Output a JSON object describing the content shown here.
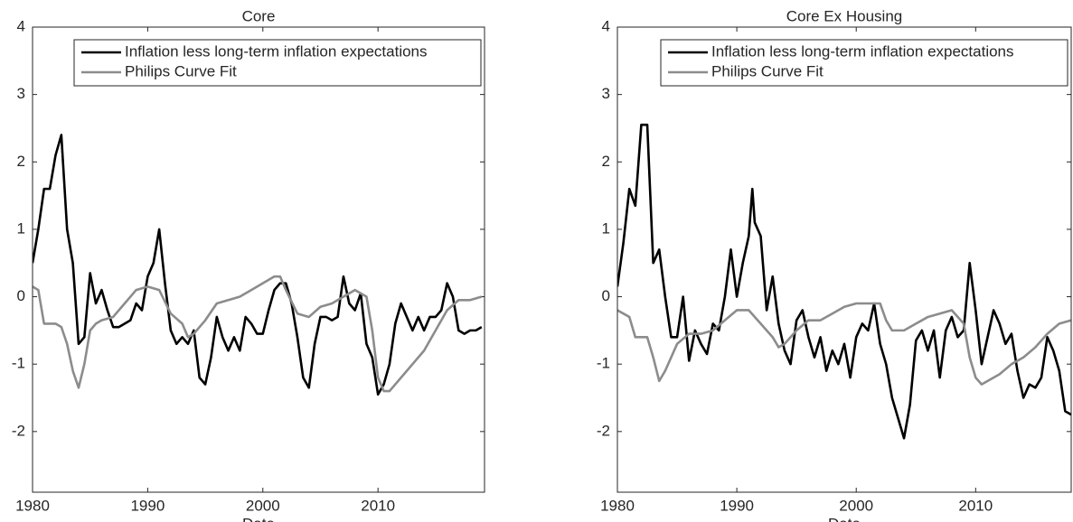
{
  "chart_data": [
    {
      "type": "line",
      "title": "Core",
      "xlabel": "Date",
      "xlim": [
        1980,
        2019.25
      ],
      "ylim": [
        -2.9,
        4
      ],
      "xticks": [
        1980,
        1990,
        2000,
        2010
      ],
      "yticks": [
        -2,
        -1,
        0,
        1,
        2,
        3,
        4
      ],
      "legend": "upper right",
      "series": [
        {
          "name": "Inflation less long-term inflation expectations",
          "color": "#000000",
          "x": [
            1980,
            1980.5,
            1981,
            1981.5,
            1982,
            1982.5,
            1983,
            1983.5,
            1984,
            1984.5,
            1985,
            1985.5,
            1986,
            1986.5,
            1987,
            1987.5,
            1988,
            1988.5,
            1989,
            1989.5,
            1990,
            1990.5,
            1991,
            1991.5,
            1992,
            1992.5,
            1993,
            1993.5,
            1994,
            1994.5,
            1995,
            1995.5,
            1996,
            1996.5,
            1997,
            1997.5,
            1998,
            1998.5,
            1999,
            1999.5,
            2000,
            2000.5,
            2001,
            2001.5,
            2002,
            2002.5,
            2003,
            2003.5,
            2004,
            2004.5,
            2005,
            2005.5,
            2006,
            2006.5,
            2007,
            2007.5,
            2008,
            2008.5,
            2009,
            2009.5,
            2010,
            2010.5,
            2011,
            2011.5,
            2012,
            2012.5,
            2013,
            2013.5,
            2014,
            2014.5,
            2015,
            2015.5,
            2016,
            2016.5,
            2017,
            2017.5,
            2018,
            2018.5,
            2019
          ],
          "values": [
            0.5,
            1.0,
            1.6,
            1.6,
            2.1,
            2.4,
            1.0,
            0.5,
            -0.7,
            -0.6,
            0.35,
            -0.1,
            0.1,
            -0.2,
            -0.45,
            -0.45,
            -0.4,
            -0.35,
            -0.1,
            -0.2,
            0.3,
            0.5,
            1.0,
            0.2,
            -0.5,
            -0.7,
            -0.6,
            -0.7,
            -0.5,
            -1.2,
            -1.3,
            -0.9,
            -0.3,
            -0.6,
            -0.8,
            -0.6,
            -0.8,
            -0.3,
            -0.4,
            -0.55,
            -0.55,
            -0.2,
            0.1,
            0.2,
            0.2,
            -0.1,
            -0.6,
            -1.2,
            -1.35,
            -0.7,
            -0.3,
            -0.3,
            -0.35,
            -0.3,
            0.3,
            -0.1,
            -0.2,
            0.05,
            -0.7,
            -0.9,
            -1.45,
            -1.3,
            -1.0,
            -0.4,
            -0.1,
            -0.3,
            -0.5,
            -0.3,
            -0.5,
            -0.3,
            -0.3,
            -0.2,
            0.2,
            0.0,
            -0.5,
            -0.55,
            -0.5,
            -0.5,
            -0.45
          ]
        },
        {
          "name": "Philips Curve Fit",
          "color": "#8c8c8c",
          "x": [
            1980,
            1980.5,
            1981,
            1982,
            1982.5,
            1983,
            1983.5,
            1984,
            1984.5,
            1985,
            1985.5,
            1986,
            1987,
            1988,
            1988.5,
            1989,
            1990,
            1991,
            1992,
            1993,
            1993.5,
            1994,
            1995,
            1996,
            1997,
            1998,
            1999,
            2000,
            2001,
            2001.5,
            2002,
            2003,
            2004,
            2005,
            2006,
            2007,
            2008,
            2009,
            2009.5,
            2010,
            2010.5,
            2011,
            2012,
            2013,
            2014,
            2015,
            2016,
            2017,
            2018,
            2019
          ],
          "values": [
            0.15,
            0.1,
            -0.4,
            -0.4,
            -0.45,
            -0.7,
            -1.1,
            -1.35,
            -1.0,
            -0.5,
            -0.4,
            -0.35,
            -0.3,
            -0.1,
            0.0,
            0.1,
            0.15,
            0.1,
            -0.25,
            -0.4,
            -0.6,
            -0.55,
            -0.35,
            -0.1,
            -0.05,
            0.0,
            0.1,
            0.2,
            0.3,
            0.3,
            0.1,
            -0.25,
            -0.3,
            -0.15,
            -0.1,
            0.0,
            0.1,
            0.0,
            -0.5,
            -1.2,
            -1.4,
            -1.4,
            -1.2,
            -1.0,
            -0.8,
            -0.5,
            -0.2,
            -0.05,
            -0.05,
            0.0
          ]
        }
      ]
    },
    {
      "type": "line",
      "title": "Core Ex Housing",
      "xlabel": "Date",
      "xlim": [
        1980,
        2018
      ],
      "ylim": [
        -2.9,
        4
      ],
      "xticks": [
        1980,
        1990,
        2000,
        2010
      ],
      "yticks": [
        -2,
        -1,
        0,
        1,
        2,
        3,
        4
      ],
      "legend": "upper right",
      "series": [
        {
          "name": "Inflation less long-term inflation expectations",
          "color": "#000000",
          "x": [
            1980,
            1980.5,
            1981,
            1981.5,
            1982,
            1982.5,
            1983,
            1983.5,
            1984,
            1984.5,
            1985,
            1985.5,
            1986,
            1986.5,
            1987,
            1987.5,
            1988,
            1988.5,
            1989,
            1989.5,
            1990,
            1990.5,
            1991,
            1991.3,
            1991.5,
            1992,
            1992.5,
            1993,
            1993.5,
            1994,
            1994.5,
            1995,
            1995.5,
            1996,
            1996.5,
            1997,
            1997.5,
            1998,
            1998.5,
            1999,
            1999.5,
            2000,
            2000.5,
            2001,
            2001.5,
            2002,
            2002.5,
            2003,
            2003.5,
            2004,
            2004.5,
            2005,
            2005.5,
            2006,
            2006.5,
            2007,
            2007.5,
            2008,
            2008.5,
            2009,
            2009.5,
            2010,
            2010.5,
            2011,
            2011.5,
            2012,
            2012.5,
            2013,
            2013.5,
            2014,
            2014.5,
            2015,
            2015.5,
            2016,
            2016.5,
            2017,
            2017.5,
            2018
          ],
          "values": [
            0.15,
            0.8,
            1.6,
            1.35,
            2.55,
            2.55,
            0.5,
            0.7,
            0.0,
            -0.6,
            -0.6,
            0.0,
            -0.95,
            -0.5,
            -0.7,
            -0.85,
            -0.4,
            -0.5,
            0.0,
            0.7,
            0.0,
            0.5,
            0.9,
            1.6,
            1.1,
            0.9,
            -0.2,
            0.3,
            -0.4,
            -0.8,
            -1.0,
            -0.35,
            -0.2,
            -0.6,
            -0.9,
            -0.6,
            -1.1,
            -0.8,
            -1.0,
            -0.7,
            -1.2,
            -0.6,
            -0.4,
            -0.5,
            -0.1,
            -0.7,
            -1.0,
            -1.5,
            -1.8,
            -2.1,
            -1.6,
            -0.65,
            -0.5,
            -0.8,
            -0.5,
            -1.2,
            -0.5,
            -0.3,
            -0.6,
            -0.5,
            0.5,
            -0.2,
            -1.0,
            -0.6,
            -0.2,
            -0.4,
            -0.7,
            -0.55,
            -1.1,
            -1.5,
            -1.3,
            -1.35,
            -1.2,
            -0.6,
            -0.8,
            -1.1,
            -1.7,
            -1.75
          ]
        },
        {
          "name": "Philips Curve Fit",
          "color": "#8c8c8c",
          "x": [
            1980,
            1981,
            1981.5,
            1982.5,
            1983,
            1983.5,
            1984,
            1985,
            1986,
            1987,
            1988,
            1989,
            1990,
            1991,
            1992,
            1993,
            1993.5,
            1994,
            1995,
            1996,
            1997,
            1998,
            1999,
            2000,
            2001,
            2002,
            2002.5,
            2003,
            2004,
            2005,
            2006,
            2007,
            2008,
            2009,
            2009.5,
            2010,
            2010.5,
            2011,
            2012,
            2013,
            2014,
            2015,
            2016,
            2017,
            2018
          ],
          "values": [
            -0.2,
            -0.3,
            -0.6,
            -0.6,
            -0.9,
            -1.25,
            -1.1,
            -0.7,
            -0.55,
            -0.55,
            -0.5,
            -0.35,
            -0.2,
            -0.2,
            -0.4,
            -0.6,
            -0.75,
            -0.7,
            -0.5,
            -0.35,
            -0.35,
            -0.25,
            -0.15,
            -0.1,
            -0.1,
            -0.1,
            -0.35,
            -0.5,
            -0.5,
            -0.4,
            -0.3,
            -0.25,
            -0.2,
            -0.4,
            -0.9,
            -1.2,
            -1.3,
            -1.25,
            -1.15,
            -1.0,
            -0.9,
            -0.75,
            -0.55,
            -0.4,
            -0.35
          ]
        }
      ]
    }
  ]
}
